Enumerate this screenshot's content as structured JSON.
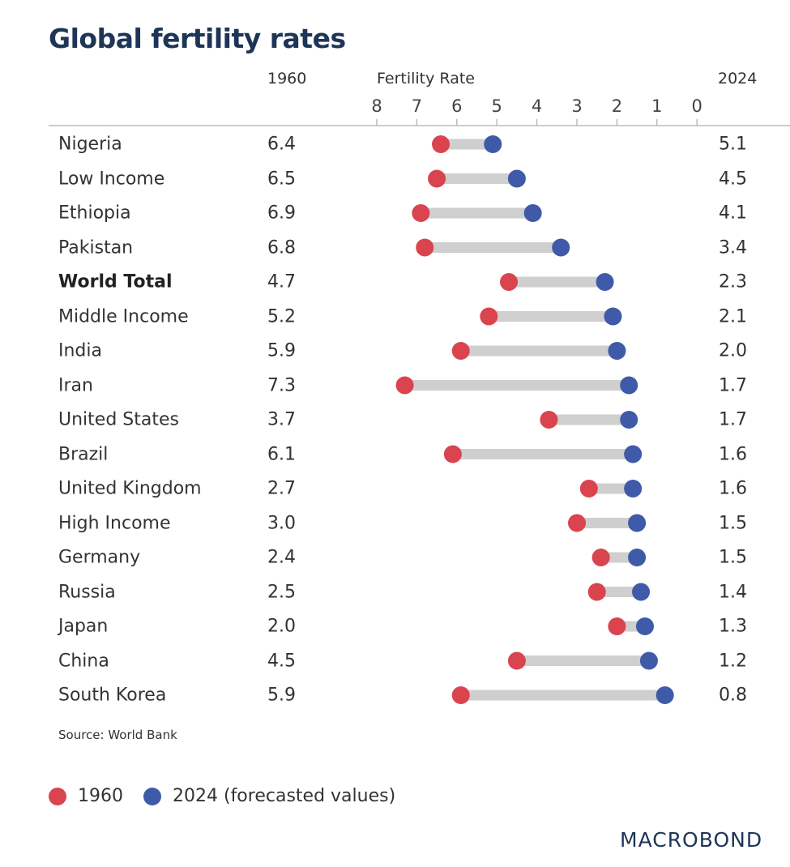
{
  "chart_data": {
    "type": "dumbbell",
    "title": "Global fertility rates",
    "axis_label": "Fertility Rate",
    "xlim": [
      8,
      0
    ],
    "ticks": [
      8,
      7,
      6,
      5,
      4,
      3,
      2,
      1,
      0
    ],
    "column_1960": "1960",
    "column_2024": "2024",
    "categories": [
      "Nigeria",
      "Low Income",
      "Ethiopia",
      "Pakistan",
      "World Total",
      "Middle Income",
      "India",
      "Iran",
      "United States",
      "Brazil",
      "United Kingdom",
      "High Income",
      "Germany",
      "Russia",
      "Japan",
      "China",
      "South Korea"
    ],
    "highlight": "World Total",
    "series": [
      {
        "name": "1960",
        "color": "#d9444f",
        "values": [
          6.4,
          6.5,
          6.9,
          6.8,
          4.7,
          5.2,
          5.9,
          7.3,
          3.7,
          6.1,
          2.7,
          3.0,
          2.4,
          2.5,
          2.0,
          4.5,
          5.9
        ]
      },
      {
        "name": "2024 (forecasted values)",
        "color": "#3f5aa8",
        "values": [
          5.1,
          4.5,
          4.1,
          3.4,
          2.3,
          2.1,
          2.0,
          1.7,
          1.7,
          1.6,
          1.6,
          1.5,
          1.5,
          1.4,
          1.3,
          1.2,
          0.8
        ]
      }
    ],
    "source": "Source: World Bank"
  },
  "logo": "MACROBOND"
}
